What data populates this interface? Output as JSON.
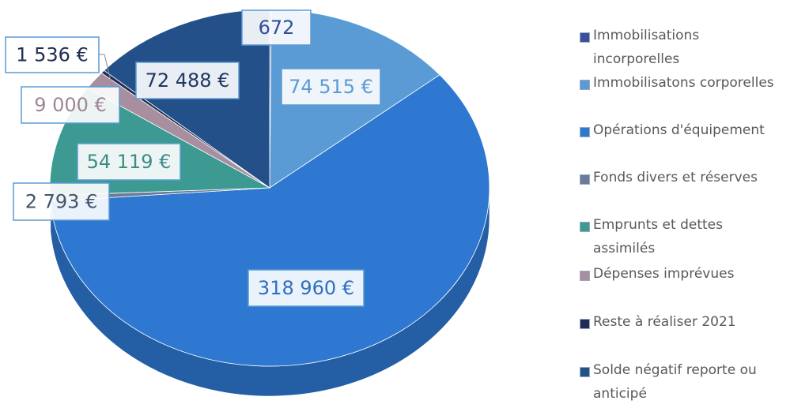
{
  "chart_data": {
    "type": "pie",
    "title": "",
    "categories": [
      "Immobilisations incorporelles",
      "Immobilisatons corporelles",
      "Opérations d'équipement",
      "Fonds divers et réserves",
      "Emprunts et dettes assimilés",
      "Dépenses imprévues",
      "Reste à réaliser 2021",
      "Solde négatif reporte ou anticipé"
    ],
    "values": [
      672,
      74515,
      318960,
      2793,
      54119,
      9000,
      1536,
      72488
    ],
    "data_labels": [
      "672",
      "74 515 €",
      "318 960 €",
      "2 793 €",
      "54 119 €",
      "9 000 €",
      "1 536 €",
      "72 488 €"
    ],
    "colors": [
      "#3a4f9a",
      "#5b9bd5",
      "#2e78d2",
      "#6a7c9a",
      "#3c9a92",
      "#a88fa0",
      "#1f2d52",
      "#24508a"
    ],
    "label_colors": [
      "#2f4f96",
      "#5b9bd5",
      "#2f6fc0",
      "#44546a",
      "#3c8c84",
      "#9e8597",
      "#1f2d52",
      "#1f3864"
    ],
    "legend_position": "right"
  }
}
